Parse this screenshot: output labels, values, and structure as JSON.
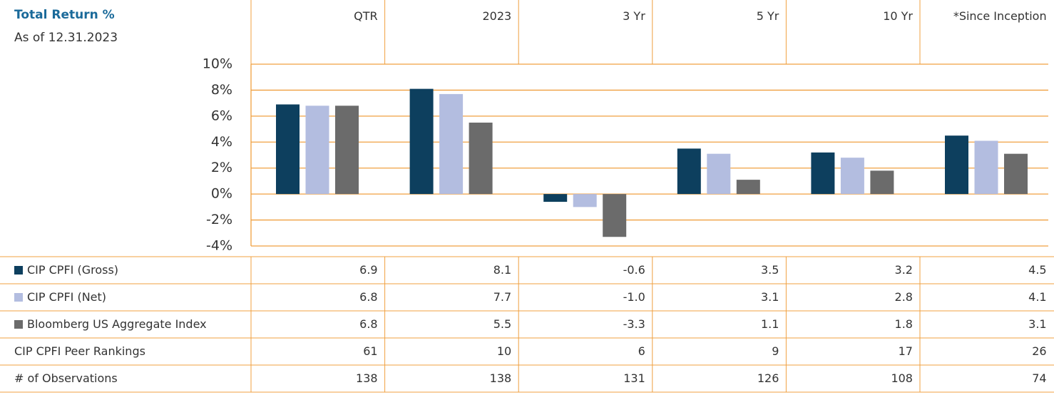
{
  "chart_data": {
    "type": "bar",
    "title": "Total Return %",
    "subtitle": "As of 12.31.2023",
    "categories": [
      "QTR",
      "2023",
      "3 Yr",
      "5 Yr",
      "10 Yr",
      "*Since Inception"
    ],
    "series": [
      {
        "name": "CIP CPFI (Gross)",
        "color": "#0d3f5e",
        "values": [
          6.9,
          8.1,
          -0.6,
          3.5,
          3.2,
          4.5
        ]
      },
      {
        "name": "CIP CPFI (Net)",
        "color": "#b3bde0",
        "values": [
          6.8,
          7.7,
          -1.0,
          3.1,
          2.8,
          4.1
        ],
        "value_labels": [
          "6.8",
          "7.7",
          "-1.0",
          "3.1",
          "2.8",
          "4.1"
        ]
      },
      {
        "name": "Bloomberg US Aggregate Index",
        "color": "#6b6b6b",
        "values": [
          6.8,
          5.5,
          -3.3,
          1.1,
          1.8,
          3.1
        ]
      }
    ],
    "ylim": [
      -4,
      10
    ],
    "yticks": [
      {
        "value": 10,
        "label": "10%"
      },
      {
        "value": 8,
        "label": "8%"
      },
      {
        "value": 6,
        "label": "6%"
      },
      {
        "value": 4,
        "label": "4%"
      },
      {
        "value": 2,
        "label": "2%"
      },
      {
        "value": 0,
        "label": "0%"
      },
      {
        "value": -2,
        "label": "-2%"
      },
      {
        "value": -4,
        "label": "-4%"
      }
    ],
    "grid": true,
    "grid_color": "#f0a040"
  },
  "table": {
    "rows": [
      {
        "label": "CIP CPFI Peer Rankings",
        "values": [
          61,
          10,
          6,
          9,
          17,
          26
        ]
      },
      {
        "label": "# of Observations",
        "values": [
          138,
          138,
          131,
          126,
          108,
          74
        ]
      }
    ]
  }
}
